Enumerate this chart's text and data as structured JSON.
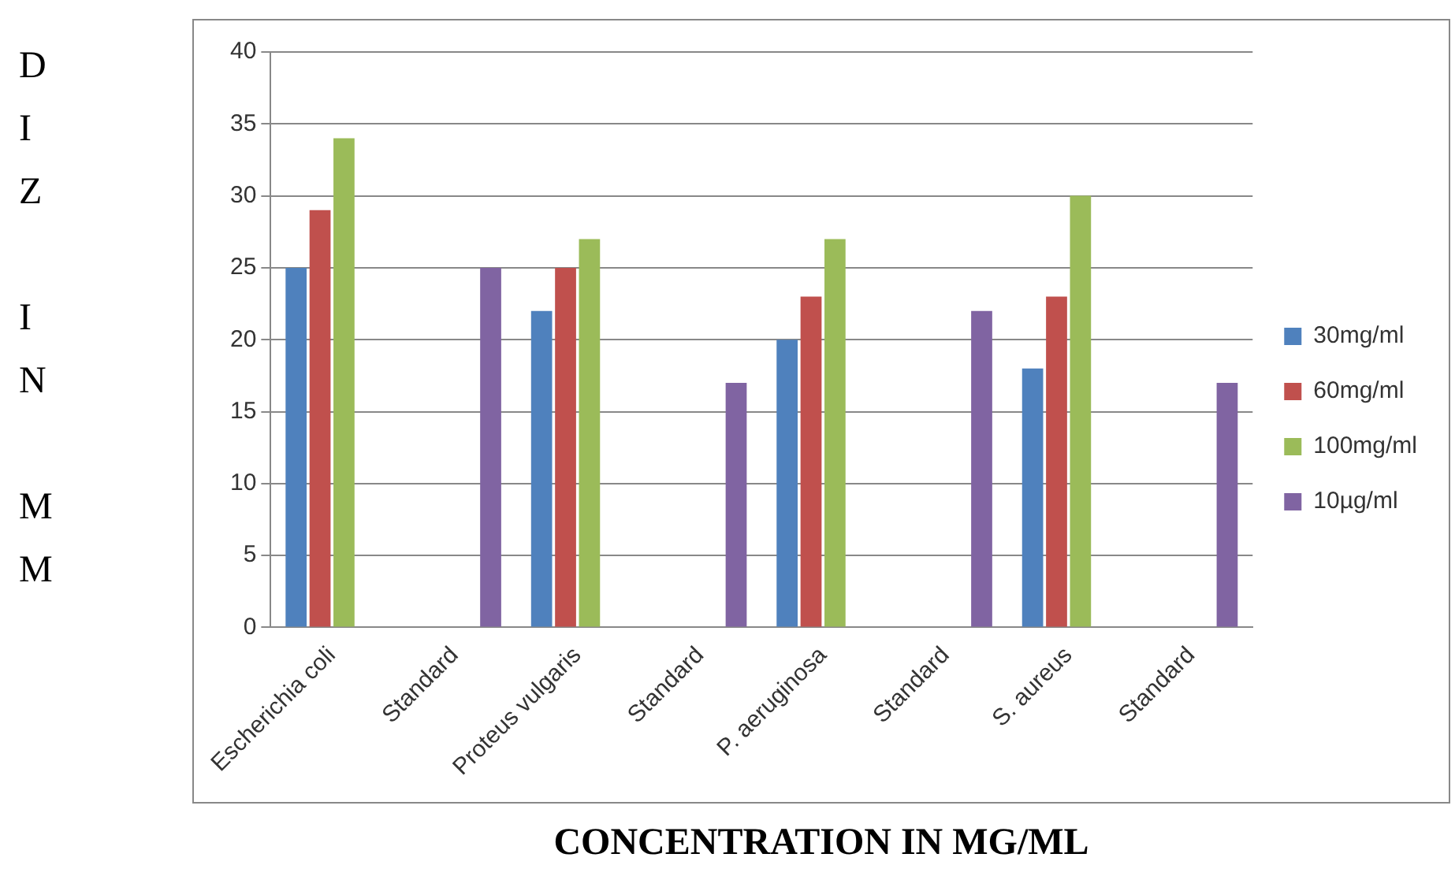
{
  "chart_data": {
    "type": "bar",
    "xlabel": "CONCENTRATION IN MG/ML",
    "ylabel": "DIZ IN MM",
    "categories": [
      "Escherichia coli",
      "Standard",
      "Proteus vulgaris",
      "Standard",
      "P. aeruginosa",
      "Standard",
      "S. aureus",
      "Standard"
    ],
    "series": [
      {
        "name": "30mg/ml",
        "color": "#4f81bd",
        "values": [
          25,
          null,
          22,
          null,
          20,
          null,
          18,
          null
        ]
      },
      {
        "name": "60mg/ml",
        "color": "#c0504d",
        "values": [
          29,
          null,
          25,
          null,
          23,
          null,
          23,
          null
        ]
      },
      {
        "name": "100mg/ml",
        "color": "#9bbb59",
        "values": [
          34,
          null,
          27,
          null,
          27,
          null,
          30,
          null
        ]
      },
      {
        "name": "10µg/ml",
        "color": "#8064a2",
        "values": [
          null,
          25,
          null,
          17,
          null,
          22,
          null,
          17
        ]
      }
    ],
    "ylim": [
      0,
      40
    ],
    "yticks": [
      0,
      5,
      10,
      15,
      20,
      25,
      30,
      35,
      40
    ],
    "grid": "y",
    "legend": "right"
  }
}
